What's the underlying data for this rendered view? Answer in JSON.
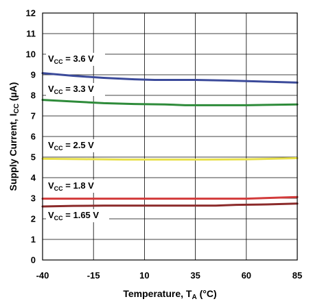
{
  "chart_data": {
    "type": "line",
    "xlabel": "Temperature, T",
    "xlabel_sub": "A",
    "xlabel_unit": " (°C)",
    "ylabel": "Supply Current, I",
    "ylabel_sub": "CC",
    "ylabel_unit": " (µA)",
    "xlim": [
      -40,
      85
    ],
    "ylim": [
      0,
      12
    ],
    "x_ticks": [
      -40,
      -15,
      10,
      35,
      60,
      85
    ],
    "y_ticks": [
      0,
      1,
      2,
      3,
      4,
      5,
      6,
      7,
      8,
      9,
      10,
      11,
      12
    ],
    "grid": true,
    "series": [
      {
        "name": "3.6 V",
        "label_main": "V",
        "label_sub": "CC",
        "label_rest": " = 3.6 V",
        "color": "#3b4a9a",
        "x": [
          -40,
          -25,
          -10,
          5,
          15,
          35,
          50,
          65,
          85
        ],
        "y": [
          9.08,
          8.95,
          8.85,
          8.78,
          8.75,
          8.75,
          8.72,
          8.68,
          8.62
        ]
      },
      {
        "name": "3.3 V",
        "label_main": "V",
        "label_sub": "CC",
        "label_rest": " = 3.3 V",
        "color": "#2e8b3a",
        "x": [
          -40,
          -25,
          -10,
          5,
          20,
          30,
          45,
          60,
          85
        ],
        "y": [
          7.78,
          7.7,
          7.62,
          7.58,
          7.56,
          7.52,
          7.52,
          7.52,
          7.56
        ]
      },
      {
        "name": "2.5 V",
        "label_main": "V",
        "label_sub": "CC",
        "label_rest": " = 2.5 V",
        "color": "#e8e04a",
        "x": [
          -40,
          -20,
          0,
          20,
          40,
          60,
          85
        ],
        "y": [
          4.92,
          4.9,
          4.88,
          4.88,
          4.88,
          4.89,
          4.95
        ]
      },
      {
        "name": "1.8 V",
        "label_main": "V",
        "label_sub": "CC",
        "label_rest": " = 1.8 V",
        "color": "#d23a3a",
        "x": [
          -40,
          -15,
          10,
          35,
          60,
          85
        ],
        "y": [
          2.98,
          2.98,
          2.98,
          2.98,
          2.98,
          3.06
        ]
      },
      {
        "name": "1.65 V",
        "label_main": "V",
        "label_sub": "CC",
        "label_rest": " = 1.65 V",
        "color": "#8b2a2a",
        "x": [
          -40,
          -25,
          -10,
          10,
          30,
          45,
          55,
          70,
          85
        ],
        "y": [
          2.6,
          2.63,
          2.64,
          2.64,
          2.64,
          2.64,
          2.68,
          2.7,
          2.74
        ]
      }
    ]
  }
}
